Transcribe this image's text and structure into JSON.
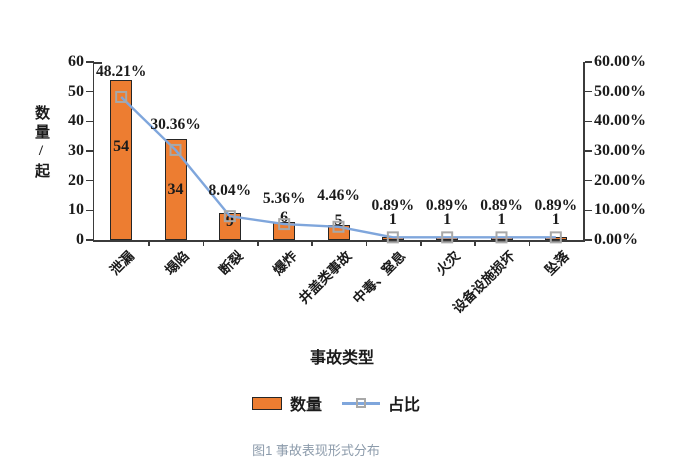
{
  "chart_data": {
    "type": "combo-bar-line",
    "categories": [
      "泄漏",
      "塌陷",
      "断裂",
      "爆炸",
      "井盖类事故",
      "中毒、窒息",
      "火灾",
      "设备设施损坏",
      "坠落"
    ],
    "series": [
      {
        "name": "数量",
        "type": "bar",
        "axis": "left",
        "values": [
          54,
          34,
          9,
          6,
          5,
          1,
          1,
          1,
          1
        ],
        "labels": [
          "54",
          "34",
          "9",
          "6",
          "5",
          "1",
          "1",
          "1",
          "1"
        ],
        "color": "#ED7D31",
        "border_color": "#262626"
      },
      {
        "name": "占比",
        "type": "line",
        "axis": "right",
        "values": [
          48.21,
          30.36,
          8.04,
          5.36,
          4.46,
          0.89,
          0.89,
          0.89,
          0.89
        ],
        "labels": [
          "48.21%",
          "30.36%",
          "8.04%",
          "5.36%",
          "4.46%",
          "0.89%",
          "0.89%",
          "0.89%",
          "0.89%"
        ],
        "color": "#7FA6DC",
        "marker": "square",
        "marker_color": "#A8A8A8"
      }
    ],
    "xlabel": "事故类型",
    "left_axis": {
      "title": "数量/起",
      "min": 0,
      "max": 60,
      "ticks": [
        "60",
        "50",
        "40",
        "30",
        "20",
        "10",
        "0"
      ]
    },
    "right_axis": {
      "min": "0.00%",
      "max": "60.00%",
      "ticks": [
        "60.00%",
        "50.00%",
        "40.00%",
        "30.00%",
        "20.00%",
        "10.00%",
        "0.00%"
      ]
    },
    "legend": {
      "position": "bottom",
      "items": [
        "数量",
        "占比"
      ]
    },
    "grid": false
  },
  "caption": "图1 事故表现形式分布",
  "colors": {
    "bar_fill": "#ED7D31",
    "bar_border": "#262626",
    "line": "#7FA6DC",
    "marker_border": "#A8A8A8",
    "axis": "#3B3B3B",
    "text": "#1B1B1B",
    "caption_text": "#8C9BAB",
    "background": "#FFFFFF"
  }
}
